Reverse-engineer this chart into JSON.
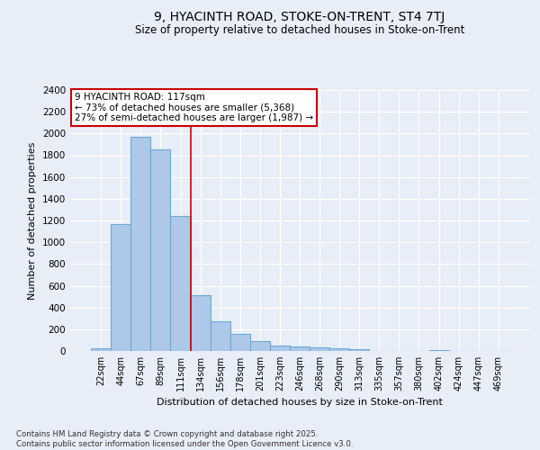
{
  "title": "9, HYACINTH ROAD, STOKE-ON-TRENT, ST4 7TJ",
  "subtitle": "Size of property relative to detached houses in Stoke-on-Trent",
  "xlabel": "Distribution of detached houses by size in Stoke-on-Trent",
  "ylabel": "Number of detached properties",
  "categories": [
    "22sqm",
    "44sqm",
    "67sqm",
    "89sqm",
    "111sqm",
    "134sqm",
    "156sqm",
    "178sqm",
    "201sqm",
    "223sqm",
    "246sqm",
    "268sqm",
    "290sqm",
    "313sqm",
    "335sqm",
    "357sqm",
    "380sqm",
    "402sqm",
    "424sqm",
    "447sqm",
    "469sqm"
  ],
  "values": [
    28,
    1170,
    1970,
    1855,
    1240,
    515,
    270,
    155,
    90,
    48,
    40,
    35,
    22,
    13,
    0,
    0,
    0,
    12,
    0,
    0,
    0
  ],
  "bar_color": "#adc8e8",
  "bar_edge_color": "#6aaad4",
  "bg_color": "#e8eef8",
  "grid_color": "#ffffff",
  "annotation_text": "9 HYACINTH ROAD: 117sqm\n← 73% of detached houses are smaller (5,368)\n27% of semi-detached houses are larger (1,987) →",
  "annotation_box_color": "#ffffff",
  "annotation_box_edge_color": "#cc0000",
  "vline_x_index": 4.5,
  "vline_color": "#cc0000",
  "ylim": [
    0,
    2400
  ],
  "yticks": [
    0,
    200,
    400,
    600,
    800,
    1000,
    1200,
    1400,
    1600,
    1800,
    2000,
    2200,
    2400
  ],
  "footer": "Contains HM Land Registry data © Crown copyright and database right 2025.\nContains public sector information licensed under the Open Government Licence v3.0.",
  "figsize": [
    6.0,
    5.0
  ],
  "dpi": 100
}
